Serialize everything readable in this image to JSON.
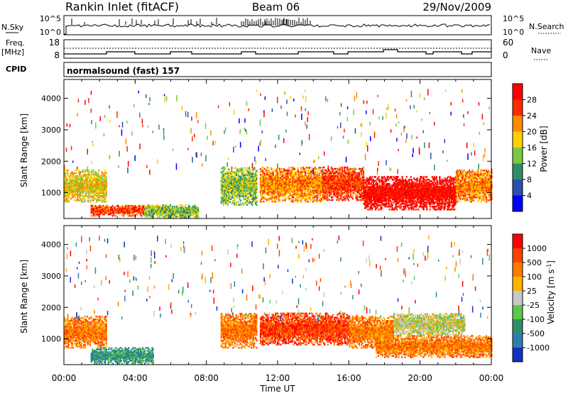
{
  "header": {
    "station": "Rankin Inlet (fitACF)",
    "beam": "Beam 06",
    "date": "29/Nov/2009"
  },
  "status_panels": {
    "nsky_label": "N.Sky",
    "nsky_ticks": [
      "10^5",
      "10^0"
    ],
    "nsearch_label": "N.Search",
    "nsearch_ticks": [
      "10^5",
      "10^0"
    ],
    "freq_label": "Freq.",
    "freq_unit": "[MHz]",
    "freq_ticks": [
      "18",
      "8"
    ],
    "nave_label": "Nave",
    "nave_ticks": [
      "60",
      "0"
    ],
    "cpid_label": "CPID",
    "cpid_text": "normalsound (fast) 157"
  },
  "chart_data": [
    {
      "type": "heatmap",
      "name": "power-panel",
      "ylabel": "Slant Range [km]",
      "ylim": [
        180,
        4600
      ],
      "yticks": [
        1000,
        2000,
        3000,
        4000
      ],
      "xlim": [
        0,
        24
      ],
      "xtick_labels": [
        "00:00",
        "04:00",
        "08:00",
        "12:00",
        "16:00",
        "20:00",
        "00:00"
      ],
      "colorbar": {
        "label": "Power [dB]",
        "ticks": [
          "4",
          "8",
          "12",
          "16",
          "20",
          "24",
          "28"
        ],
        "colors": [
          "#0000ff",
          "#2a4fb0",
          "#2f8d6a",
          "#7cc842",
          "#ffd000",
          "#ff8a00",
          "#ff2a00",
          "#ff0000"
        ]
      },
      "description_blocks": [
        {
          "t0": 0.0,
          "t1": 2.4,
          "r0": 700,
          "r1": 1700,
          "level": 4
        },
        {
          "t0": 1.5,
          "t1": 4.5,
          "r0": 250,
          "r1": 600,
          "level": 6
        },
        {
          "t0": 4.5,
          "t1": 7.5,
          "r0": 180,
          "r1": 600,
          "level": 3
        },
        {
          "t0": 8.8,
          "t1": 10.8,
          "r0": 600,
          "r1": 1800,
          "level": 3
        },
        {
          "t0": 11.0,
          "t1": 14.5,
          "r0": 700,
          "r1": 1800,
          "level": 5
        },
        {
          "t0": 14.5,
          "t1": 16.8,
          "r0": 750,
          "r1": 1800,
          "level": 6
        },
        {
          "t0": 16.8,
          "t1": 22.0,
          "r0": 450,
          "r1": 1500,
          "level": 7
        },
        {
          "t0": 22.0,
          "t1": 24.0,
          "r0": 700,
          "r1": 1700,
          "level": 5
        }
      ]
    },
    {
      "type": "heatmap",
      "name": "velocity-panel",
      "ylabel": "Slant Range [km]",
      "ylim": [
        180,
        4600
      ],
      "yticks": [
        1000,
        2000,
        3000,
        4000
      ],
      "xlim": [
        0,
        24
      ],
      "xtick_labels": [
        "00:00",
        "04:00",
        "08:00",
        "12:00",
        "16:00",
        "20:00",
        "00:00"
      ],
      "xlabel": "Time UT",
      "colorbar": {
        "label": "Velocity [m s^-1]",
        "ticks": [
          "1000",
          "500",
          "100",
          "25",
          "-25",
          "-100",
          "-500",
          "-1000"
        ],
        "colors": [
          "#1030c0",
          "#2a7fb0",
          "#2f8d6a",
          "#5cc84a",
          "#c8c8c8",
          "#ffb000",
          "#ff7a00",
          "#ff4000",
          "#ff0000"
        ]
      },
      "description_blocks": [
        {
          "t0": 0.0,
          "t1": 2.4,
          "r0": 700,
          "r1": 1700,
          "level": 6
        },
        {
          "t0": 1.5,
          "t1": 5.0,
          "r0": 200,
          "r1": 700,
          "level": 2
        },
        {
          "t0": 8.8,
          "t1": 10.8,
          "r0": 700,
          "r1": 1800,
          "level": 6
        },
        {
          "t0": 11.0,
          "t1": 16.0,
          "r0": 800,
          "r1": 1800,
          "level": 7
        },
        {
          "t0": 16.0,
          "t1": 18.5,
          "r0": 700,
          "r1": 1700,
          "level": 6
        },
        {
          "t0": 18.5,
          "t1": 22.5,
          "r0": 1100,
          "r1": 1800,
          "level": 4
        },
        {
          "t0": 17.5,
          "t1": 24.0,
          "r0": 400,
          "r1": 1100,
          "level": 6
        }
      ]
    }
  ]
}
